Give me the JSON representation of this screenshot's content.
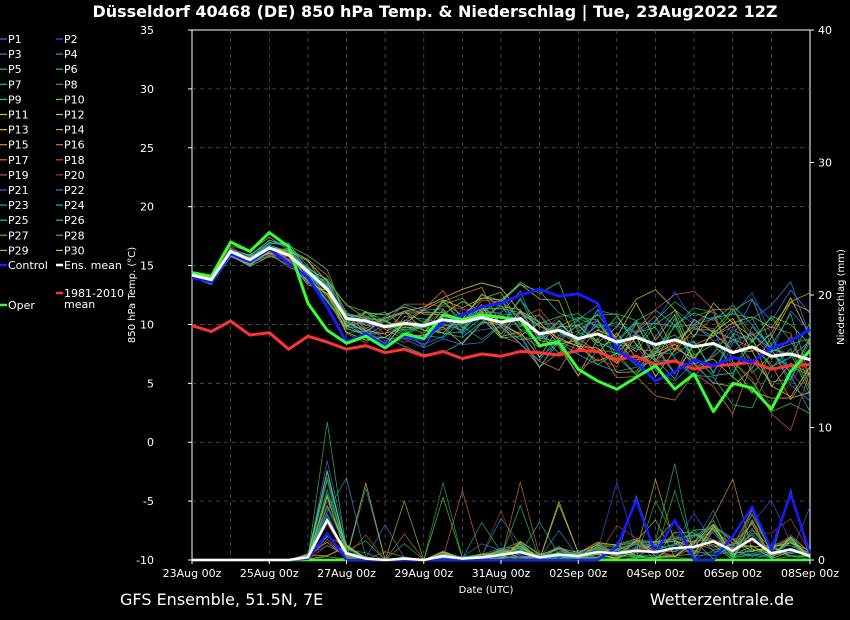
{
  "chart_data": {
    "type": "line",
    "title": "Düsseldorf 40468 (DE)  850 hPa Temp. & Niederschlag | Tue, 23Aug2022 12Z",
    "xlabel": "Date (UTC)",
    "ylabel": "850 hPa Temp. (°C)",
    "y2label": "Niederschlag (mm)",
    "ylim": [
      -10,
      35
    ],
    "y2lim": [
      0,
      40
    ],
    "yticks": [
      "35",
      "30",
      "25",
      "20",
      "15",
      "10",
      "5",
      "0",
      "-5",
      "-10"
    ],
    "y2ticks": [
      "40",
      "30",
      "20",
      "10",
      "0"
    ],
    "xticks": [
      "23Aug 00z",
      "25Aug 00z",
      "27Aug 00z",
      "29Aug 00z",
      "31Aug 00z",
      "02Sep 00z",
      "04Sep 00z",
      "06Sep 00z",
      "08Sep 00z"
    ],
    "grid": true,
    "legend_placement": "left",
    "legend": [
      {
        "label": "P1",
        "color": "#4f6cf2"
      },
      {
        "label": "P2",
        "color": "#2e5bff"
      },
      {
        "label": "P3",
        "color": "#2f8fd9"
      },
      {
        "label": "P4",
        "color": "#1f9fcf"
      },
      {
        "label": "P5",
        "color": "#2eb3b3"
      },
      {
        "label": "P6",
        "color": "#22c48a"
      },
      {
        "label": "P7",
        "color": "#19c0a8"
      },
      {
        "label": "P8",
        "color": "#2aa86a"
      },
      {
        "label": "P9",
        "color": "#33d14a"
      },
      {
        "label": "P10",
        "color": "#4fdc2f"
      },
      {
        "label": "P11",
        "color": "#b9d33a"
      },
      {
        "label": "P12",
        "color": "#d8c83a"
      },
      {
        "label": "P13",
        "color": "#e0b531"
      },
      {
        "label": "P14",
        "color": "#e39c2a"
      },
      {
        "label": "P15",
        "color": "#d98a40"
      },
      {
        "label": "P16",
        "color": "#c97a32"
      },
      {
        "label": "P17",
        "color": "#d7743a"
      },
      {
        "label": "P18",
        "color": "#d0502f"
      },
      {
        "label": "P19",
        "color": "#c84e4e"
      },
      {
        "label": "P20",
        "color": "#a83a3a"
      },
      {
        "label": "P21",
        "color": "#3b6fe0"
      },
      {
        "label": "P22",
        "color": "#2a86d8"
      },
      {
        "label": "P23",
        "color": "#25a6c9"
      },
      {
        "label": "P24",
        "color": "#1db7b7"
      },
      {
        "label": "P25",
        "color": "#1fc79a"
      },
      {
        "label": "P26",
        "color": "#27cf78"
      },
      {
        "label": "P27",
        "color": "#35c45a"
      },
      {
        "label": "P28",
        "color": "#2fbf3f"
      },
      {
        "label": "P29",
        "color": "#9acd32"
      },
      {
        "label": "P30",
        "color": "#d2c12e"
      },
      {
        "label": "Control",
        "color": "#1a1aff"
      },
      {
        "label": "Ens. mean",
        "color": "#ffffff"
      },
      {
        "label": "Oper",
        "color": "#33ff33"
      },
      {
        "label": "1981-2010\nmean",
        "color": "#ff3333"
      }
    ],
    "x_days": [
      0,
      0.5,
      1,
      1.5,
      2,
      2.5,
      3,
      3.5,
      4,
      4.5,
      5,
      5.5,
      6,
      6.5,
      7,
      7.5,
      8,
      8.5,
      9,
      9.5,
      10,
      10.5,
      11,
      11.5,
      12,
      12.5,
      13,
      13.5,
      14,
      14.5,
      15,
      15.5,
      16
    ],
    "series": [
      {
        "name": "Ens. mean",
        "color": "#ffffff",
        "width": 3,
        "values": [
          14.2,
          13.8,
          16.2,
          15.5,
          16.5,
          15.9,
          14.5,
          13.0,
          10.5,
          10.3,
          9.8,
          10.1,
          9.9,
          10.4,
          10.2,
          10.6,
          10.2,
          10.5,
          9.2,
          9.5,
          8.8,
          9.2,
          8.5,
          8.9,
          8.3,
          8.7,
          8.1,
          8.4,
          7.6,
          8.1,
          7.3,
          7.5,
          7.0
        ]
      },
      {
        "name": "Control",
        "color": "#1a1aff",
        "width": 3,
        "values": [
          14.0,
          13.6,
          16.0,
          15.3,
          16.4,
          15.2,
          14.0,
          11.5,
          8.5,
          9.2,
          8.2,
          9.0,
          8.7,
          10.2,
          10.8,
          11.5,
          11.8,
          12.5,
          13.0,
          12.4,
          12.6,
          11.8,
          7.8,
          6.8,
          5.2,
          6.0,
          7.0,
          6.5,
          7.2,
          6.8,
          8.0,
          8.6,
          9.6
        ]
      },
      {
        "name": "Oper",
        "color": "#33ff33",
        "width": 3,
        "values": [
          14.4,
          14.1,
          17.0,
          16.2,
          17.8,
          16.6,
          11.8,
          9.5,
          8.4,
          9.0,
          8.0,
          9.2,
          8.8,
          10.8,
          10.4,
          10.8,
          10.6,
          10.4,
          8.2,
          8.5,
          6.2,
          5.2,
          4.5,
          5.5,
          6.5,
          4.5,
          5.8,
          2.6,
          5.0,
          4.6,
          2.8,
          6.0,
          7.8
        ]
      },
      {
        "name": "1981-2010\nmean",
        "color": "#ff3333",
        "width": 3,
        "values": [
          9.9,
          9.4,
          10.3,
          9.1,
          9.3,
          7.9,
          9.0,
          8.5,
          7.9,
          8.2,
          7.6,
          7.9,
          7.3,
          7.7,
          7.1,
          7.5,
          7.3,
          7.7,
          7.6,
          7.4,
          7.8,
          7.7,
          7.0,
          7.3,
          6.6,
          6.9,
          6.2,
          6.5,
          6.6,
          6.8,
          6.2,
          6.5,
          6.6
        ]
      }
    ],
    "precip_mean_mm": [
      0,
      0,
      0,
      0,
      0,
      0,
      0.2,
      3.0,
      0.5,
      0.1,
      0,
      0.1,
      0,
      0.3,
      0.1,
      0.2,
      0.4,
      0.6,
      0.2,
      0.4,
      0.3,
      0.6,
      0.5,
      0.7,
      0.6,
      0.9,
      1.0,
      1.4,
      0.7,
      1.6,
      0.5,
      0.8,
      0.3
    ],
    "precip_control_mm": [
      0,
      0,
      0,
      0,
      0,
      0,
      0.1,
      2.0,
      0,
      0,
      0,
      0,
      0,
      0,
      0,
      0,
      0,
      0,
      0,
      0,
      0,
      0,
      1.0,
      4.5,
      0.5,
      3.0,
      0,
      0,
      1.8,
      4.0,
      0.8,
      5.0,
      0.5
    ],
    "precip_oper_mm": [
      0,
      0,
      0,
      0,
      0,
      0,
      0,
      0,
      0,
      0,
      0,
      0,
      0,
      0,
      0,
      0,
      0,
      0,
      0,
      0,
      0,
      0,
      0,
      0,
      0,
      0,
      0,
      0,
      0,
      0,
      0,
      0,
      0
    ]
  },
  "footer": {
    "left": "GFS Ensemble, 51.5N, 7E",
    "right": "Wetterzentrale.de"
  }
}
